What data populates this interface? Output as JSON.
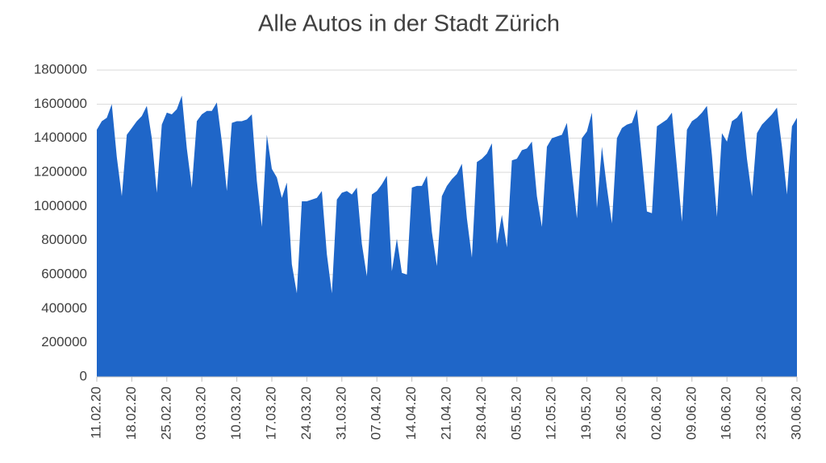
{
  "chart_data": {
    "type": "area",
    "title": "Alle Autos in der Stadt Zürich",
    "categories": [
      "11.02.20",
      null,
      null,
      null,
      null,
      null,
      null,
      "18.02.20",
      null,
      null,
      null,
      null,
      null,
      null,
      "25.02.20",
      null,
      null,
      null,
      null,
      null,
      null,
      "03.03.20",
      null,
      null,
      null,
      null,
      null,
      null,
      "10.03.20",
      null,
      null,
      null,
      null,
      null,
      null,
      "17.03.20",
      null,
      null,
      null,
      null,
      null,
      null,
      "24.03.20",
      null,
      null,
      null,
      null,
      null,
      null,
      "31.03.20",
      null,
      null,
      null,
      null,
      null,
      null,
      "07.04.20",
      null,
      null,
      null,
      null,
      null,
      null,
      "14.04.20",
      null,
      null,
      null,
      null,
      null,
      null,
      "21.04.20",
      null,
      null,
      null,
      null,
      null,
      null,
      "28.04.20",
      null,
      null,
      null,
      null,
      null,
      null,
      "05.05.20",
      null,
      null,
      null,
      null,
      null,
      null,
      "12.05.20",
      null,
      null,
      null,
      null,
      null,
      null,
      "19.05.20",
      null,
      null,
      null,
      null,
      null,
      null,
      "26.05.20",
      null,
      null,
      null,
      null,
      null,
      null,
      "02.06.20",
      null,
      null,
      null,
      null,
      null,
      null,
      "09.06.20",
      null,
      null,
      null,
      null,
      null,
      null,
      "16.06.20",
      null,
      null,
      null,
      null,
      null,
      null,
      "23.06.20",
      null,
      null,
      null,
      null,
      null,
      null,
      "30.06.20"
    ],
    "values": [
      1450000,
      1500000,
      1520000,
      1600000,
      1290000,
      1060000,
      1420000,
      1460000,
      1500000,
      1530000,
      1590000,
      1400000,
      1080000,
      1480000,
      1550000,
      1540000,
      1570000,
      1650000,
      1340000,
      1110000,
      1500000,
      1540000,
      1560000,
      1560000,
      1610000,
      1380000,
      1090000,
      1490000,
      1500000,
      1500000,
      1510000,
      1540000,
      1150000,
      880000,
      1420000,
      1220000,
      1170000,
      1050000,
      1140000,
      660000,
      490000,
      1030000,
      1030000,
      1040000,
      1050000,
      1090000,
      720000,
      490000,
      1040000,
      1080000,
      1090000,
      1070000,
      1110000,
      780000,
      590000,
      1070000,
      1090000,
      1130000,
      1180000,
      620000,
      810000,
      610000,
      600000,
      1110000,
      1120000,
      1120000,
      1180000,
      850000,
      650000,
      1060000,
      1120000,
      1160000,
      1190000,
      1250000,
      930000,
      700000,
      1260000,
      1280000,
      1310000,
      1370000,
      780000,
      950000,
      760000,
      1270000,
      1280000,
      1330000,
      1340000,
      1380000,
      1060000,
      880000,
      1350000,
      1400000,
      1410000,
      1420000,
      1490000,
      1200000,
      930000,
      1400000,
      1440000,
      1550000,
      990000,
      1350000,
      1110000,
      900000,
      1400000,
      1460000,
      1480000,
      1490000,
      1570000,
      1280000,
      970000,
      960000,
      1470000,
      1490000,
      1510000,
      1550000,
      1230000,
      910000,
      1450000,
      1500000,
      1520000,
      1550000,
      1590000,
      1300000,
      940000,
      1430000,
      1380000,
      1500000,
      1520000,
      1560000,
      1280000,
      1060000,
      1430000,
      1480000,
      1510000,
      1540000,
      1580000,
      1350000,
      1070000,
      1470000,
      1520000
    ],
    "color": "#1f66c8",
    "ylim": [
      0,
      1800000
    ],
    "yticks": [
      0,
      200000,
      400000,
      600000,
      800000,
      1000000,
      1200000,
      1400000,
      1600000,
      1800000
    ],
    "grid": true
  }
}
